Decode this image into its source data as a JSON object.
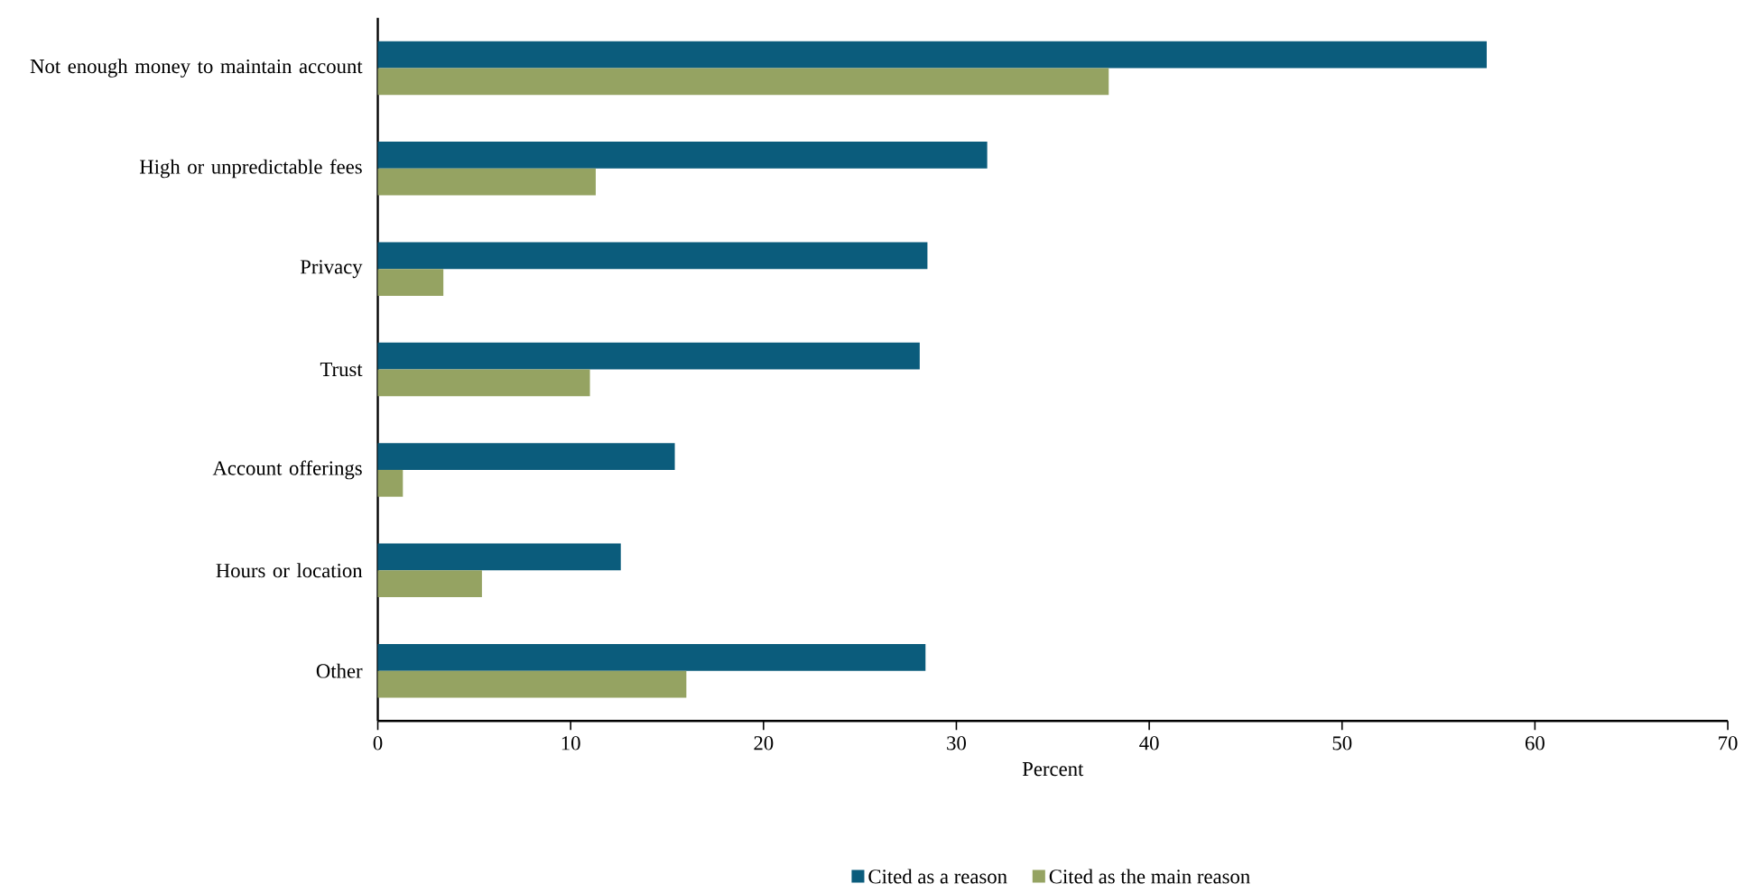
{
  "chart_data": {
    "type": "bar",
    "orientation": "horizontal",
    "xlabel": "Percent",
    "categories": [
      "Not enough money to maintain account",
      "High or unpredictable fees",
      "Privacy",
      "Trust",
      "Account offerings",
      "Hours or location",
      "Other"
    ],
    "series": [
      {
        "name": "Cited as a reason",
        "color": "#0b5c7c",
        "values": [
          57.5,
          31.6,
          28.5,
          28.1,
          15.4,
          12.6,
          28.4
        ]
      },
      {
        "name": "Cited as the main reason",
        "color": "#95a362",
        "values": [
          37.9,
          11.3,
          3.4,
          11.0,
          1.3,
          5.4,
          16.0
        ]
      }
    ],
    "xlim": [
      0,
      70
    ],
    "xticks": [
      0,
      10,
      20,
      30,
      40,
      50,
      60,
      70
    ],
    "grid": false,
    "legend": "bottom"
  }
}
